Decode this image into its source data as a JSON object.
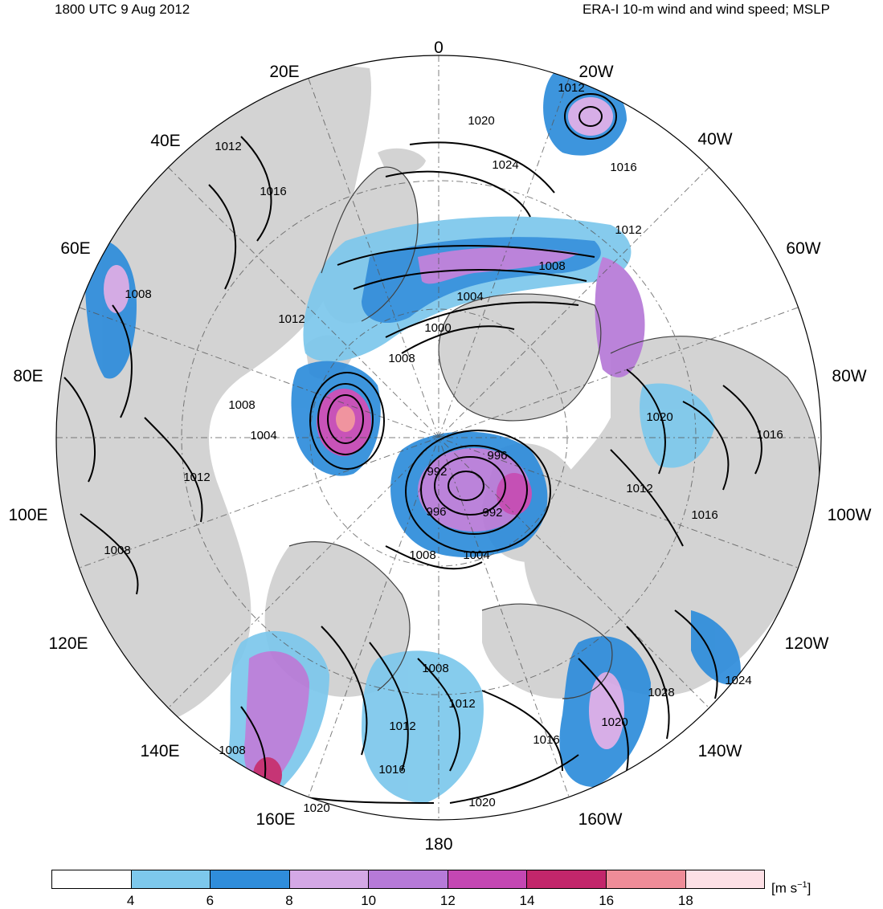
{
  "header": {
    "left_title": "1800 UTC 9 Aug 2012",
    "right_title": "ERA-I 10-m wind and wind speed; MSLP"
  },
  "map": {
    "projection": "north polar stereographic",
    "colors": {
      "land": "#d3d3d3",
      "ocean": "#ffffff",
      "isobar": "#000000",
      "coast": "#404040"
    },
    "longitude_labels": [
      "0",
      "20W",
      "40W",
      "60W",
      "80W",
      "100W",
      "120W",
      "140W",
      "160W",
      "180",
      "160E",
      "140E",
      "120E",
      "100E",
      "80E",
      "60E",
      "40E",
      "20E"
    ],
    "isobar_labels": [
      "1012",
      "1020",
      "1024",
      "1016",
      "1012",
      "1016",
      "1012",
      "1008",
      "1004",
      "1000",
      "1008",
      "1012",
      "1008",
      "1008",
      "1004",
      "1012",
      "992",
      "996",
      "996",
      "992",
      "1008",
      "1004",
      "1020",
      "1016",
      "1012",
      "1016",
      "1008",
      "1012",
      "1012",
      "1016",
      "1016",
      "1020",
      "1028",
      "1024",
      "1020",
      "1008",
      "1020",
      "1008"
    ]
  },
  "colorbar": {
    "colors": [
      "#ffffff",
      "#7dc8ec",
      "#2f8ddb",
      "#d4a8e6",
      "#b67ad8",
      "#c447b3",
      "#c2266b",
      "#ef8c98",
      "#fde0e6"
    ],
    "ticks": [
      "4",
      "6",
      "8",
      "10",
      "12",
      "14",
      "16",
      "18"
    ],
    "units_text": "[m s",
    "units_exponent": "−1",
    "units_close": "]"
  }
}
